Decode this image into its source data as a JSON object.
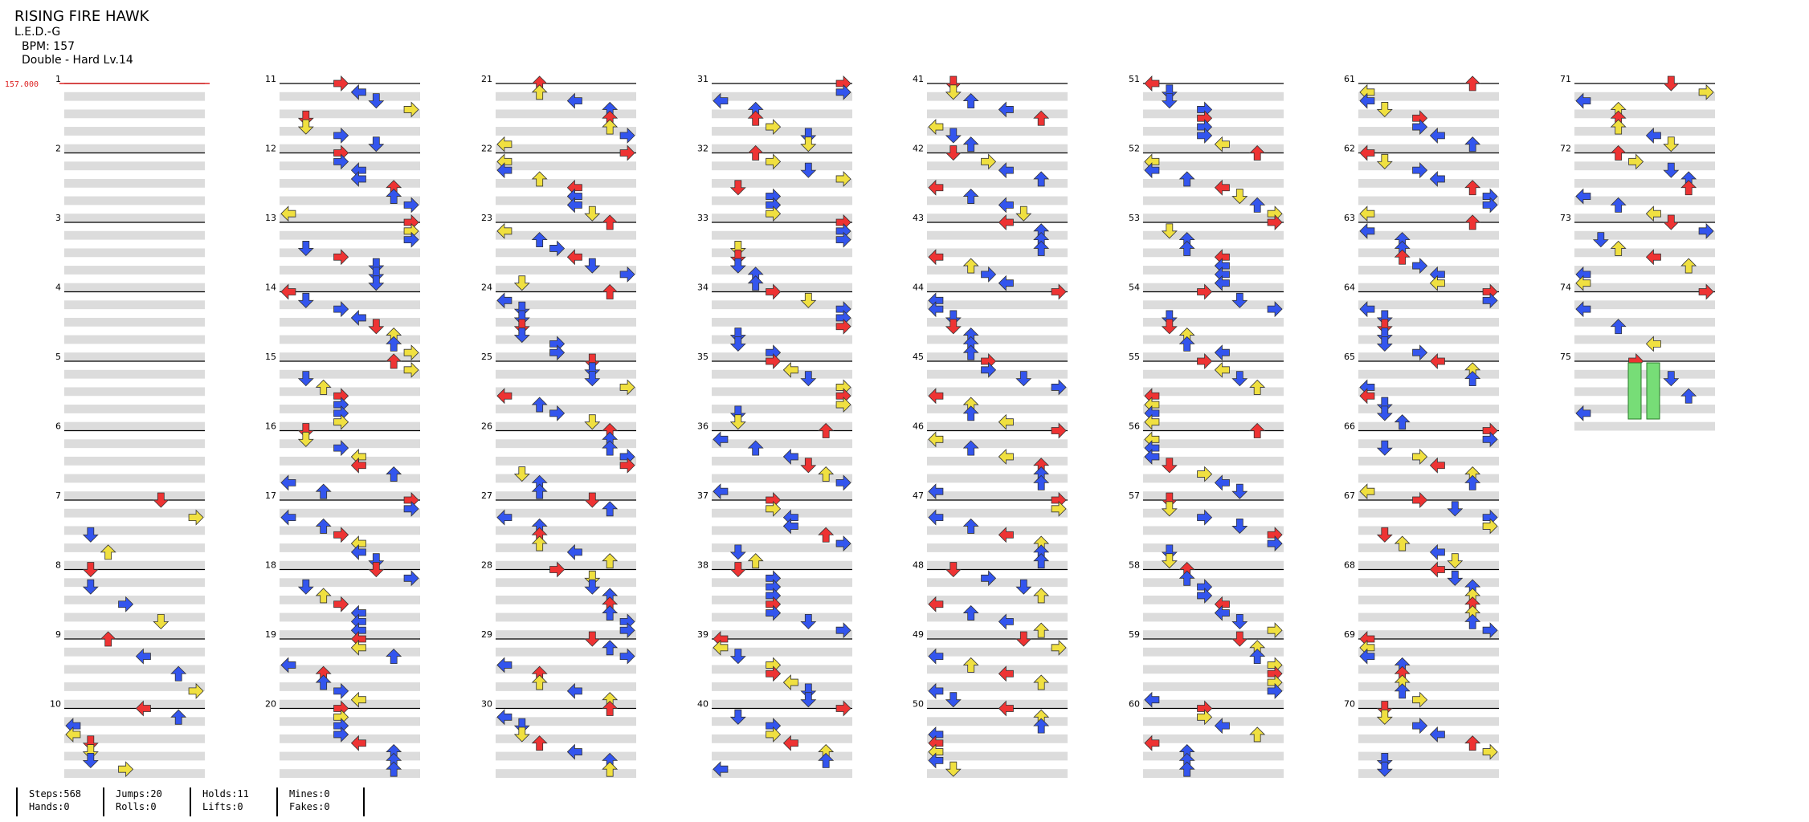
{
  "song": {
    "title": "RISING FIRE HAWK",
    "artist": "L.E.D.-G",
    "bpm_label": "BPM: 157",
    "difficulty_label": "Double - Hard  Lv.14"
  },
  "bpm_marker": "157.000",
  "measure_numbers": [
    "1",
    "2",
    "3",
    "4",
    "5",
    "6",
    "7",
    "8",
    "9",
    "10",
    "11",
    "12",
    "13",
    "14",
    "15",
    "16",
    "17",
    "18",
    "19",
    "20",
    "21",
    "22",
    "23",
    "24",
    "25",
    "26",
    "27",
    "28",
    "29",
    "30",
    "31",
    "32",
    "33",
    "34",
    "35",
    "36",
    "37",
    "38",
    "39",
    "40",
    "41",
    "42",
    "43",
    "44",
    "45",
    "46",
    "47",
    "48",
    "49",
    "50",
    "51",
    "52",
    "53",
    "54",
    "55",
    "56",
    "57",
    "58",
    "59",
    "60",
    "61",
    "62",
    "63",
    "64",
    "65",
    "66",
    "67",
    "68",
    "69",
    "70",
    "71",
    "72",
    "73",
    "74",
    "75"
  ],
  "colors": {
    "quarter_note": "#ee3333",
    "eighth_note": "#3355ee",
    "sixteenth_note": "#f0e040",
    "hold": "#77dd77",
    "bpm_marker": "#dd2222",
    "band": "#dcdcdc"
  },
  "stats": [
    {
      "line1": "Steps:568",
      "line2": "Hands:0"
    },
    {
      "line1": "Jumps:20",
      "line2": "Rolls:0"
    },
    {
      "line1": "Holds:11",
      "line2": "Lifts:0"
    },
    {
      "line1": "Mines:0",
      "line2": "Fakes:0"
    }
  ]
}
